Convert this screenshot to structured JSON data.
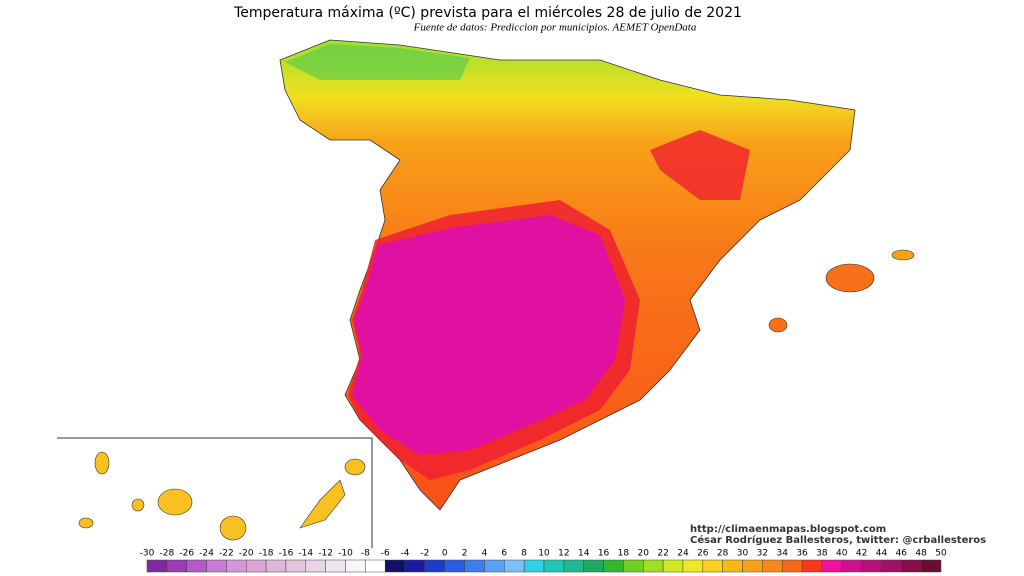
{
  "header": {
    "title": "Temperatura máxima (ºC) prevista para el miércoles 28 de julio de 2021",
    "subtitle": "Fuente de datos: Prediccion por municipios. AEMET OpenData"
  },
  "credits": [
    "http://climaenmapas.blogspot.com",
    "César Rodríguez Ballesteros, twitter: @crballesteros"
  ],
  "legend": {
    "ticks": [
      -30,
      -28,
      -26,
      -24,
      -22,
      -20,
      -18,
      -16,
      -14,
      -12,
      -10,
      -8,
      -6,
      -4,
      -2,
      0,
      2,
      4,
      6,
      8,
      10,
      12,
      14,
      16,
      18,
      20,
      22,
      24,
      26,
      28,
      30,
      32,
      34,
      36,
      38,
      40,
      42,
      44,
      46,
      48,
      50
    ],
    "colors": [
      "#7f2a9e",
      "#9b3cb5",
      "#b25ac8",
      "#c77ad6",
      "#d496d8",
      "#d9a6d6",
      "#ddb6d8",
      "#e2c6e0",
      "#e8d6e8",
      "#efe6ef",
      "#f6f6f6",
      "#ffffff",
      "#10106b",
      "#1a1aa0",
      "#1e3ccc",
      "#2a5ce8",
      "#3d7df0",
      "#5aa0f5",
      "#7cc0f8",
      "#2fd0e8",
      "#20c8b8",
      "#20b890",
      "#20a860",
      "#30b830",
      "#70d020",
      "#a0e020",
      "#d0e820",
      "#f0e820",
      "#f8d020",
      "#f8b818",
      "#f8a018",
      "#f88818",
      "#f86818",
      "#f83818",
      "#f0109c",
      "#d0108c",
      "#b8107a",
      "#a01064",
      "#880c48",
      "#6c0c30"
    ]
  }
}
